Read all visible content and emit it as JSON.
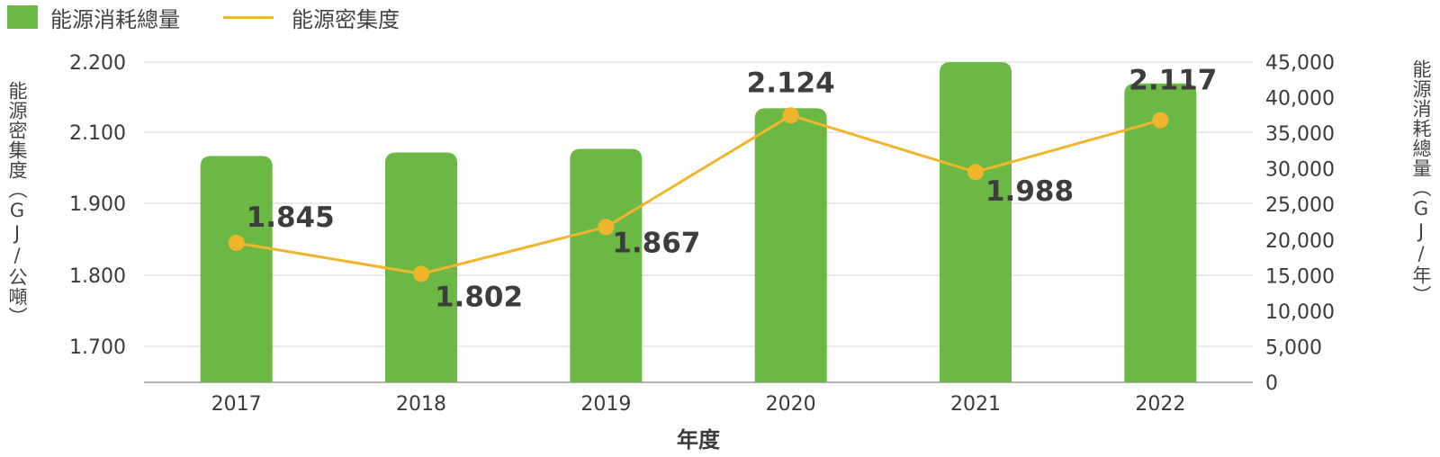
{
  "legend": {
    "bar_label": "能源消耗總量",
    "line_label": "能源密集度"
  },
  "axes": {
    "left_title": "能源密集度（GJ/公噸）",
    "right_title": "能源消耗總量（GJ/年）",
    "x_title": "年度"
  },
  "colors": {
    "bar": "#6cb844",
    "line": "#f1b52b",
    "text": "#3a3a3a",
    "grid": "#d6d6d6"
  },
  "chart_data": {
    "type": "bar+line",
    "categories": [
      "2017",
      "2018",
      "2019",
      "2020",
      "2021",
      "2022"
    ],
    "series": [
      {
        "name": "能源消耗總量",
        "type": "bar",
        "axis": "right",
        "values": [
          31800,
          32300,
          32800,
          38500,
          45000,
          42000
        ]
      },
      {
        "name": "能源密集度",
        "type": "line",
        "axis": "left",
        "values": [
          1.845,
          1.802,
          1.867,
          2.124,
          1.988,
          2.117
        ],
        "labels": [
          "1.845",
          "1.802",
          "1.867",
          "2.124",
          "1.988",
          "2.117"
        ]
      }
    ],
    "left_axis": {
      "ticks": [
        1.7,
        1.8,
        1.9,
        2.1,
        2.2
      ],
      "tick_labels": [
        "1.700",
        "1.800",
        "1.900",
        "2.100",
        "2.200"
      ]
    },
    "right_axis": {
      "ylim": [
        0,
        45000
      ],
      "ticks": [
        0,
        5000,
        10000,
        15000,
        20000,
        25000,
        30000,
        35000,
        40000,
        45000
      ],
      "tick_labels": [
        "0",
        "5,000",
        "10,000",
        "15,000",
        "20,000",
        "25,000",
        "30,000",
        "35,000",
        "40,000",
        "45,000"
      ]
    },
    "xlabel": "年度",
    "grid": true,
    "legend_position": "top-left"
  }
}
